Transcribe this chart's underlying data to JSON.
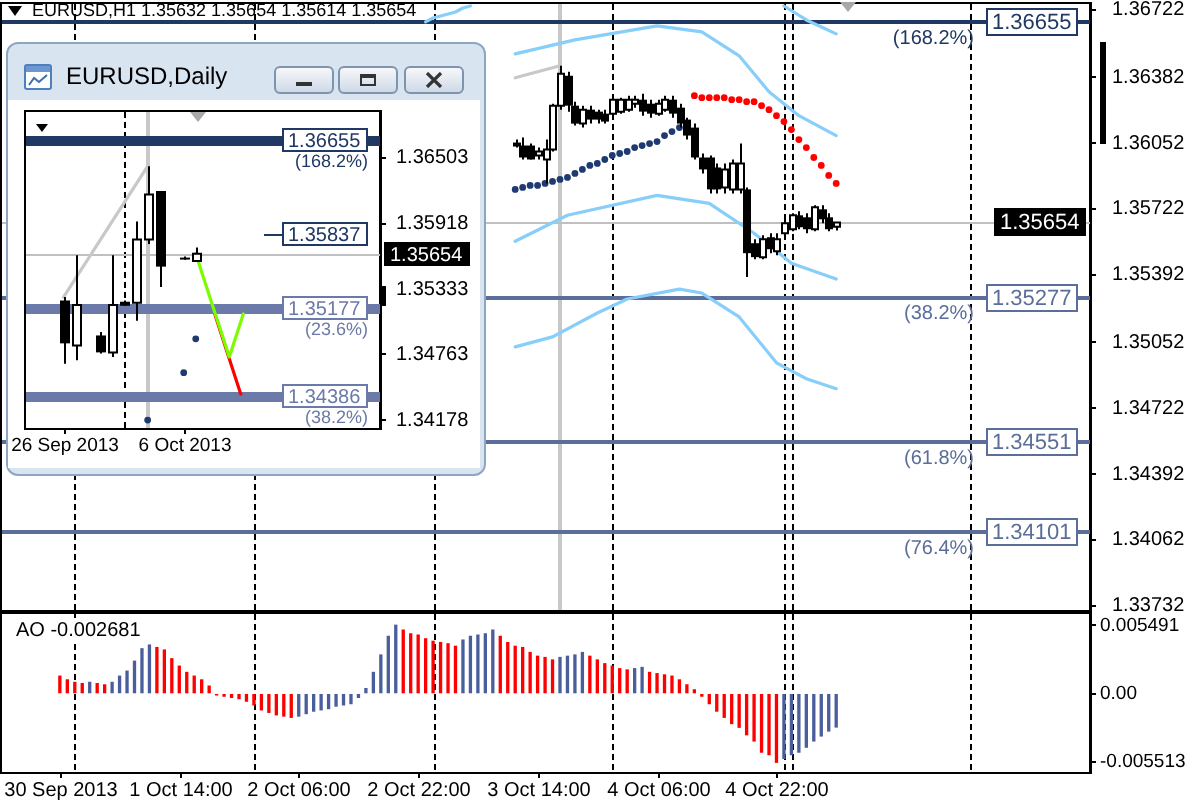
{
  "chart_data": [
    {
      "type": "candlestick",
      "title": "EURUSD,H1 1.35632 1.35654 1.35614 1.35654",
      "x": [
        "2013-10-03T11:00",
        "2013-10-03T12:00",
        "2013-10-03T13:00",
        "2013-10-03T14:00",
        "2013-10-03T15:00",
        "2013-10-03T16:00",
        "2013-10-03T17:00",
        "2013-10-03T18:00",
        "2013-10-03T19:00",
        "2013-10-03T20:00",
        "2013-10-03T21:00",
        "2013-10-03T22:00",
        "2013-10-03T23:00",
        "2013-10-04T00:00",
        "2013-10-04T01:00",
        "2013-10-04T02:00",
        "2013-10-04T03:00",
        "2013-10-04T04:00",
        "2013-10-04T05:00",
        "2013-10-04T06:00",
        "2013-10-04T07:00",
        "2013-10-04T08:00",
        "2013-10-04T09:00",
        "2013-10-04T10:00",
        "2013-10-04T11:00",
        "2013-10-04T12:00",
        "2013-10-04T13:00",
        "2013-10-04T14:00",
        "2013-10-04T15:00",
        "2013-10-04T16:00",
        "2013-10-04T17:00",
        "2013-10-04T18:00",
        "2013-10-04T19:00",
        "2013-10-04T20:00",
        "2013-10-04T21:00",
        "2013-10-04T22:00",
        "2013-10-04T23:00",
        "2013-10-05T00:00",
        "2013-10-05T01:00",
        "2013-10-05T02:00",
        "2013-10-05T03:00",
        "2013-10-05T04:00",
        "2013-10-05T05:00",
        "2013-10-05T06:00"
      ],
      "ohlc": [
        [
          1.3604,
          1.3607,
          1.3603,
          1.3605
        ],
        [
          1.3604,
          1.3608,
          1.3597,
          1.3598
        ],
        [
          1.3604,
          1.3605,
          1.3597,
          1.3597
        ],
        [
          1.3599,
          1.3603,
          1.3597,
          1.3601
        ],
        [
          1.3597,
          1.3607,
          1.3585,
          1.3602
        ],
        [
          1.3602,
          1.3625,
          1.3601,
          1.3624
        ],
        [
          1.3624,
          1.3644,
          1.3622,
          1.364
        ],
        [
          1.3639,
          1.3641,
          1.3621,
          1.3624
        ],
        [
          1.3624,
          1.3626,
          1.3614,
          1.3615
        ],
        [
          1.3615,
          1.3624,
          1.3613,
          1.3622
        ],
        [
          1.3622,
          1.3624,
          1.3615,
          1.3617
        ],
        [
          1.3621,
          1.3622,
          1.3615,
          1.3617
        ],
        [
          1.362,
          1.3622,
          1.3615,
          1.3616
        ],
        [
          1.362,
          1.3628,
          1.3619,
          1.3627
        ],
        [
          1.3621,
          1.3628,
          1.362,
          1.3627
        ],
        [
          1.3622,
          1.3629,
          1.3621,
          1.3627
        ],
        [
          1.3625,
          1.3629,
          1.3623,
          1.3627
        ],
        [
          1.3627,
          1.363,
          1.3619,
          1.3621
        ],
        [
          1.3625,
          1.3627,
          1.3618,
          1.362
        ],
        [
          1.362,
          1.3627,
          1.3619,
          1.3625
        ],
        [
          1.3622,
          1.3629,
          1.3621,
          1.3627
        ],
        [
          1.3627,
          1.3629,
          1.3618,
          1.362
        ],
        [
          1.3623,
          1.3625,
          1.3613,
          1.3615
        ],
        [
          1.3617,
          1.3618,
          1.3607,
          1.3609
        ],
        [
          1.3613,
          1.3615,
          1.3597,
          1.3598
        ],
        [
          1.3598,
          1.36,
          1.359,
          1.3592
        ],
        [
          1.3598,
          1.3599,
          1.358,
          1.3582
        ],
        [
          1.3593,
          1.3595,
          1.358,
          1.3582
        ],
        [
          1.3583,
          1.3595,
          1.358,
          1.3592
        ],
        [
          1.3582,
          1.3597,
          1.358,
          1.3595
        ],
        [
          1.3582,
          1.3605,
          1.358,
          1.3595
        ],
        [
          1.3582,
          1.3583,
          1.3538,
          1.355
        ],
        [
          1.3555,
          1.3557,
          1.3547,
          1.3548
        ],
        [
          1.3548,
          1.3559,
          1.3547,
          1.3557
        ],
        [
          1.3558,
          1.356,
          1.355,
          1.3552
        ],
        [
          1.3551,
          1.356,
          1.3549,
          1.3557
        ],
        [
          1.356,
          1.3568,
          1.3558,
          1.3565
        ],
        [
          1.3562,
          1.357,
          1.3561,
          1.3569
        ],
        [
          1.3569,
          1.3571,
          1.3562,
          1.3563
        ],
        [
          1.3568,
          1.357,
          1.356,
          1.3562
        ],
        [
          1.3562,
          1.3574,
          1.3561,
          1.3573
        ],
        [
          1.3572,
          1.3574,
          1.3565,
          1.3567
        ],
        [
          1.3568,
          1.357,
          1.3561,
          1.3562
        ],
        [
          1.35632,
          1.35654,
          1.35614,
          1.35654
        ]
      ],
      "series": [
        {
          "type": "line",
          "color": "#87cefa",
          "x": [
            "2013-10-02T23:00",
            "2013-10-03T00:00",
            "2013-10-03T01:00",
            "2013-10-03T02:00",
            "2013-10-03T03:00",
            "2013-10-03T04:00",
            "2013-10-03T05:00",
            "2013-10-04T12:00",
            "2013-10-04T23:00",
            "2013-10-05T02:00",
            "2013-10-05T06:00"
          ],
          "values": [
            1.3666,
            1.3668,
            1.3669,
            1.367,
            1.3671,
            1.3673,
            1.3674,
            null,
            1.3674,
            1.3667,
            1.366
          ]
        },
        {
          "type": "line",
          "color": "#87cefa",
          "x": [
            "2013-10-03T11:00",
            "2013-10-03T19:00",
            "2013-10-04T06:00",
            "2013-10-04T12:00",
            "2013-10-04T17:00",
            "2013-10-04T21:00",
            "2013-10-05T01:00",
            "2013-10-05T06:00"
          ],
          "values": [
            1.365,
            1.3657,
            1.3664,
            1.3661,
            1.3649,
            1.3631,
            1.3619,
            1.3609
          ]
        },
        {
          "type": "line",
          "color": "#87cefa",
          "x": [
            "2013-10-03T11:00",
            "2013-10-03T18:00",
            "2013-10-04T06:00",
            "2013-10-04T13:00",
            "2013-10-04T19:00",
            "2013-10-05T00:00",
            "2013-10-05T06:00"
          ],
          "values": [
            1.3556,
            1.3569,
            1.3579,
            1.3575,
            1.356,
            1.3545,
            1.3537
          ]
        },
        {
          "type": "line",
          "color": "#87cefa",
          "x": [
            "2013-10-03T11:00",
            "2013-10-03T16:00",
            "2013-10-03T22:00",
            "2013-10-04T02:00",
            "2013-10-04T09:00",
            "2013-10-04T12:00",
            "2013-10-04T17:00",
            "2013-10-04T22:00",
            "2013-10-05T02:00",
            "2013-10-05T06:00"
          ],
          "values": [
            1.3503,
            1.3508,
            1.352,
            1.3527,
            1.3532,
            1.353,
            1.3518,
            1.3495,
            1.3487,
            1.3482
          ]
        },
        {
          "type": "line",
          "color": "#c8c8c8",
          "x": [
            "2013-10-03T11:00",
            "2013-10-03T17:00"
          ],
          "values": [
            1.3638,
            1.3644
          ]
        },
        {
          "type": "scatter",
          "color": "#1f3a70",
          "marker": "circle",
          "x": [
            "2013-10-03T11:00",
            "2013-10-03T12:00",
            "2013-10-03T13:00",
            "2013-10-03T14:00",
            "2013-10-03T15:00",
            "2013-10-03T16:00",
            "2013-10-03T17:00",
            "2013-10-03T18:00",
            "2013-10-03T19:00",
            "2013-10-03T20:00",
            "2013-10-03T21:00",
            "2013-10-03T22:00",
            "2013-10-03T23:00",
            "2013-10-04T00:00",
            "2013-10-04T01:00",
            "2013-10-04T02:00",
            "2013-10-04T03:00",
            "2013-10-04T04:00",
            "2013-10-04T05:00",
            "2013-10-04T06:00",
            "2013-10-04T07:00",
            "2013-10-04T08:00",
            "2013-10-04T09:00"
          ],
          "values": [
            1.3582,
            1.3583,
            1.3584,
            1.3584,
            1.3585,
            1.3586,
            1.3587,
            1.3588,
            1.359,
            1.3592,
            1.3594,
            1.3595,
            1.3597,
            1.3599,
            1.36,
            1.3601,
            1.3603,
            1.3604,
            1.3605,
            1.3606,
            1.3609,
            1.3611,
            1.3613
          ]
        },
        {
          "type": "scatter",
          "color": "#ff0000",
          "marker": "circle",
          "x": [
            "2013-10-04T11:00",
            "2013-10-04T12:00",
            "2013-10-04T13:00",
            "2013-10-04T14:00",
            "2013-10-04T15:00",
            "2013-10-04T16:00",
            "2013-10-04T17:00",
            "2013-10-04T18:00",
            "2013-10-04T19:00",
            "2013-10-04T20:00",
            "2013-10-04T21:00",
            "2013-10-04T22:00",
            "2013-10-04T23:00",
            "2013-10-05T00:00",
            "2013-10-05T01:00",
            "2013-10-05T02:00",
            "2013-10-05T03:00",
            "2013-10-05T04:00",
            "2013-10-05T05:00",
            "2013-10-05T06:00"
          ],
          "values": [
            1.3629,
            1.3628,
            1.3628,
            1.3628,
            1.3628,
            1.3627,
            1.3627,
            1.3626,
            1.3626,
            1.3624,
            1.3622,
            1.3619,
            1.3616,
            1.3612,
            1.3607,
            1.3603,
            1.3598,
            1.3594,
            1.3589,
            1.3585
          ]
        }
      ],
      "xlim": [
        "2013-09-30T14:15",
        "2013-10-06T16:00"
      ],
      "ylim": [
        1.3371,
        1.3675
      ],
      "yticks": [
        1.33732,
        1.34062,
        1.34392,
        1.34722,
        1.35052,
        1.35392,
        1.35722,
        1.36052,
        1.36382,
        1.36722
      ],
      "tick_labels": "y",
      "ref_lines": [
        {
          "axis": "y",
          "value": 1.36655,
          "label": "1.36655",
          "color": "#1f3864"
        },
        {
          "axis": "y",
          "value": 1.35277,
          "label": "1.35277",
          "color": "#5b6e9a"
        },
        {
          "axis": "y",
          "value": 1.34551,
          "label": "1.34551",
          "color": "#5b6e9a"
        },
        {
          "axis": "y",
          "value": 1.34101,
          "label": "1.34101",
          "color": "#5b6e9a"
        },
        {
          "axis": "y",
          "value": 1.35654,
          "label": "1.35654",
          "color": "#c0c0c0"
        },
        {
          "axis": "x",
          "value": "2013-10-01T00:00",
          "color": "#000000",
          "line_style": "dashed"
        },
        {
          "axis": "x",
          "value": "2013-10-02T00:00",
          "color": "#000000",
          "line_style": "dashed"
        },
        {
          "axis": "x",
          "value": "2013-10-03T00:00",
          "color": "#000000",
          "line_style": "dashed"
        },
        {
          "axis": "x",
          "value": "2013-10-04T00:00",
          "color": "#000000",
          "line_style": "dashed"
        },
        {
          "axis": "x",
          "value": "2013-10-04T23:00",
          "color": "#000000",
          "line_style": "dashed"
        },
        {
          "axis": "x",
          "value": "2013-10-05T00:00",
          "color": "#000000",
          "line_style": "dashed"
        },
        {
          "axis": "x",
          "value": "2013-10-06T00:00",
          "color": "#000000",
          "line_style": "dashed"
        },
        {
          "axis": "x",
          "value": "2013-10-03T17:00",
          "color": "#c8c8c8"
        }
      ],
      "annotations": [
        {
          "text": "(168.2%)",
          "y": 1.36655
        },
        {
          "text": "(38.2%)",
          "y": 1.35277
        },
        {
          "text": "(61.8%)",
          "y": 1.34551
        },
        {
          "text": "(76.4%)",
          "y": 1.34101
        }
      ]
    },
    {
      "type": "candlestick",
      "title": "EURUSD,Daily",
      "x": [
        "2013-09-26",
        "2013-09-27",
        "2013-09-29",
        "2013-09-30",
        "2013-10-01",
        "2013-10-02",
        "2013-10-03",
        "2013-10-04",
        "2013-10-06",
        "2013-10-07"
      ],
      "ohlc": [
        [
          1.3524,
          1.3527,
          1.3468,
          1.3486
        ],
        [
          1.3484,
          1.3564,
          1.3471,
          1.352
        ],
        [
          1.3493,
          1.3496,
          1.3477,
          1.3478
        ],
        [
          1.3478,
          1.3564,
          1.3474,
          1.352
        ],
        [
          1.3521,
          1.3524,
          1.3519,
          1.3522
        ],
        [
          1.3522,
          1.3594,
          1.3506,
          1.3578
        ],
        [
          1.3578,
          1.3643,
          1.3574,
          1.3618
        ],
        [
          1.3621,
          1.3621,
          1.3536,
          1.3554
        ],
        [
          1.3562,
          1.3563,
          1.356,
          1.3561
        ],
        [
          1.3559,
          1.3571,
          1.3558,
          1.35654
        ]
      ],
      "series": [
        {
          "type": "line",
          "color": "#c8c8c8",
          "x": [
            "2013-09-26",
            "2013-10-03"
          ],
          "values": [
            1.3527,
            1.3643
          ]
        },
        {
          "type": "scatter",
          "color": "#1f3a70",
          "marker": "circle",
          "x": [
            "2013-10-03",
            "2013-10-06",
            "2013-10-07"
          ],
          "values": [
            1.3418,
            1.346,
            1.349
          ]
        },
        {
          "type": "line",
          "color": "#7cfc00",
          "x": [
            "2013-10-07",
            "2013-10-09T19:00",
            "2013-10-10T23:00"
          ],
          "values": [
            1.35654,
            1.3474,
            1.3512
          ]
        },
        {
          "type": "line",
          "color": "#ff0000",
          "x": [
            "2013-10-08T14:00",
            "2013-10-10T18:00"
          ],
          "values": [
            1.3512,
            1.3441
          ]
        }
      ],
      "xlim": [
        "2013-09-22T21:00",
        "2013-10-22T08:00"
      ],
      "xticks": [
        {
          "value": "2013-09-26",
          "label": "26 Sep 2013"
        },
        {
          "value": "2013-10-06",
          "label": "6 Oct 2013"
        }
      ],
      "ylim": [
        1.3411,
        1.3691
      ],
      "yticks": [
        1.34178,
        1.34763,
        1.35333,
        1.35918,
        1.36503
      ],
      "ref_lines": [
        {
          "axis": "y",
          "value": 1.36655,
          "label": "1.36655",
          "color": "#1f3864"
        },
        {
          "axis": "y",
          "value": 1.35177,
          "label": "1.35177",
          "color": "#6b7aa8"
        },
        {
          "axis": "y",
          "value": 1.34386,
          "label": "1.34386",
          "color": "#6b7aa8"
        },
        {
          "axis": "y",
          "value": 1.35654,
          "label": "1.35654",
          "color": "#c0c0c0"
        },
        {
          "axis": "x",
          "value": "2013-10-01",
          "color": "#000000",
          "line_style": "dashed"
        },
        {
          "axis": "x",
          "value": "2013-10-03",
          "color": "#c8c8c8"
        }
      ],
      "annotations": [
        {
          "text": "(168.2%)",
          "y": 1.36655
        },
        {
          "text": "(23.6%)",
          "y": 1.35177
        },
        {
          "text": "(38.2%)",
          "y": 1.34386
        },
        "1.35837"
      ]
    },
    {
      "type": "bar",
      "title": "AO -0.002681",
      "x": [
        "2013-09-30T22:00",
        "2013-09-30T23:00",
        "2013-10-01T00:00",
        "2013-10-01T01:00",
        "2013-10-01T02:00",
        "2013-10-01T03:00",
        "2013-10-01T04:00",
        "2013-10-01T05:00",
        "2013-10-01T06:00",
        "2013-10-01T07:00",
        "2013-10-01T08:00",
        "2013-10-01T09:00",
        "2013-10-01T10:00",
        "2013-10-01T11:00",
        "2013-10-01T12:00",
        "2013-10-01T13:00",
        "2013-10-01T14:00",
        "2013-10-01T15:00",
        "2013-10-01T16:00",
        "2013-10-01T17:00",
        "2013-10-01T18:00",
        "2013-10-01T19:00",
        "2013-10-01T20:00",
        "2013-10-01T21:00",
        "2013-10-01T22:00",
        "2013-10-01T23:00",
        "2013-10-02T00:00",
        "2013-10-02T01:00",
        "2013-10-02T02:00",
        "2013-10-02T03:00",
        "2013-10-02T04:00",
        "2013-10-02T05:00",
        "2013-10-02T06:00",
        "2013-10-02T07:00",
        "2013-10-02T08:00",
        "2013-10-02T09:00",
        "2013-10-02T10:00",
        "2013-10-02T11:00",
        "2013-10-02T12:00",
        "2013-10-02T13:00",
        "2013-10-02T14:00",
        "2013-10-02T15:00",
        "2013-10-02T16:00",
        "2013-10-02T17:00",
        "2013-10-02T18:00",
        "2013-10-02T19:00",
        "2013-10-02T20:00",
        "2013-10-02T21:00",
        "2013-10-02T22:00",
        "2013-10-02T23:00",
        "2013-10-03T00:00",
        "2013-10-03T01:00",
        "2013-10-03T02:00",
        "2013-10-03T03:00",
        "2013-10-03T04:00",
        "2013-10-03T05:00",
        "2013-10-03T06:00",
        "2013-10-03T07:00",
        "2013-10-03T08:00",
        "2013-10-03T09:00",
        "2013-10-03T10:00",
        "2013-10-03T11:00",
        "2013-10-03T12:00",
        "2013-10-03T13:00",
        "2013-10-03T14:00",
        "2013-10-03T15:00",
        "2013-10-03T16:00",
        "2013-10-03T17:00",
        "2013-10-03T18:00",
        "2013-10-03T19:00",
        "2013-10-03T20:00",
        "2013-10-03T21:00",
        "2013-10-03T22:00",
        "2013-10-03T23:00",
        "2013-10-04T00:00",
        "2013-10-04T01:00",
        "2013-10-04T02:00",
        "2013-10-04T03:00",
        "2013-10-04T04:00",
        "2013-10-04T05:00",
        "2013-10-04T06:00",
        "2013-10-04T07:00",
        "2013-10-04T08:00",
        "2013-10-04T09:00",
        "2013-10-04T10:00",
        "2013-10-04T11:00",
        "2013-10-04T12:00",
        "2013-10-04T13:00",
        "2013-10-04T14:00",
        "2013-10-04T15:00",
        "2013-10-04T16:00",
        "2013-10-04T17:00",
        "2013-10-04T18:00",
        "2013-10-04T19:00",
        "2013-10-04T20:00",
        "2013-10-04T21:00",
        "2013-10-04T22:00",
        "2013-10-04T23:00",
        "2013-10-05T00:00",
        "2013-10-05T01:00",
        "2013-10-05T02:00",
        "2013-10-05T03:00",
        "2013-10-05T04:00",
        "2013-10-05T05:00",
        "2013-10-05T06:00"
      ],
      "values": [
        0.0014,
        0.0011,
        0.0009,
        0.0008,
        0.0009,
        0.0008,
        0.0007,
        0.0009,
        0.0014,
        0.0018,
        0.0026,
        0.0036,
        0.0039,
        0.0037,
        0.0035,
        0.0028,
        0.0022,
        0.0017,
        0.0014,
        0.0011,
        0.0006,
        -0.0001,
        -0.0002,
        -0.0003,
        -0.0004,
        -0.0006,
        -0.0009,
        -0.0013,
        -0.0015,
        -0.0017,
        -0.0018,
        -0.0019,
        -0.0018,
        -0.0016,
        -0.0014,
        -0.0013,
        -0.0012,
        -0.001,
        -0.0009,
        -0.0008,
        -0.0003,
        0.0004,
        0.0017,
        0.0031,
        0.0046,
        0.005491,
        0.0051,
        0.0048,
        0.0047,
        0.0044,
        0.0042,
        0.0041,
        0.004,
        0.0038,
        0.0043,
        0.0046,
        0.0047,
        0.0048,
        0.0051,
        0.0046,
        0.0041,
        0.0038,
        0.0037,
        0.0033,
        0.003,
        0.0029,
        0.0027,
        0.0029,
        0.003,
        0.0031,
        0.0033,
        0.003,
        0.0027,
        0.0024,
        0.0022,
        0.002,
        0.0019,
        0.002,
        0.0021,
        0.0017,
        0.0016,
        0.0015,
        0.0014,
        0.0011,
        0.0007,
        0.0003,
        -0.0002,
        -0.0008,
        -0.0014,
        -0.0019,
        -0.0024,
        -0.0027,
        -0.0033,
        -0.0038,
        -0.0047,
        -0.0049,
        -0.005513,
        -0.0052,
        -0.0049,
        -0.0047,
        -0.0043,
        -0.0038,
        -0.0034,
        -0.003,
        -0.002681
      ],
      "colors": [
        "#ff0000",
        "#ff0000",
        "#ff0000",
        "#ff0000",
        "#4b5e9c",
        "#ff0000",
        "#ff0000",
        "#4b5e9c",
        "#4b5e9c",
        "#4b5e9c",
        "#4b5e9c",
        "#4b5e9c",
        "#4b5e9c",
        "#ff0000",
        "#ff0000",
        "#ff0000",
        "#ff0000",
        "#ff0000",
        "#ff0000",
        "#ff0000",
        "#ff0000",
        "#ff0000",
        "#ff0000",
        "#ff0000",
        "#ff0000",
        "#ff0000",
        "#ff0000",
        "#ff0000",
        "#ff0000",
        "#ff0000",
        "#ff0000",
        "#ff0000",
        "#4b5e9c",
        "#4b5e9c",
        "#4b5e9c",
        "#4b5e9c",
        "#4b5e9c",
        "#4b5e9c",
        "#4b5e9c",
        "#4b5e9c",
        "#4b5e9c",
        "#4b5e9c",
        "#4b5e9c",
        "#4b5e9c",
        "#4b5e9c",
        "#4b5e9c",
        "#ff0000",
        "#ff0000",
        "#ff0000",
        "#ff0000",
        "#ff0000",
        "#ff0000",
        "#ff0000",
        "#ff0000",
        "#4b5e9c",
        "#4b5e9c",
        "#4b5e9c",
        "#4b5e9c",
        "#4b5e9c",
        "#ff0000",
        "#ff0000",
        "#ff0000",
        "#ff0000",
        "#ff0000",
        "#ff0000",
        "#ff0000",
        "#ff0000",
        "#4b5e9c",
        "#4b5e9c",
        "#4b5e9c",
        "#4b5e9c",
        "#ff0000",
        "#ff0000",
        "#ff0000",
        "#ff0000",
        "#ff0000",
        "#ff0000",
        "#4b5e9c",
        "#4b5e9c",
        "#ff0000",
        "#ff0000",
        "#ff0000",
        "#ff0000",
        "#ff0000",
        "#ff0000",
        "#ff0000",
        "#ff0000",
        "#ff0000",
        "#ff0000",
        "#ff0000",
        "#ff0000",
        "#ff0000",
        "#ff0000",
        "#ff0000",
        "#ff0000",
        "#ff0000",
        "#ff0000",
        "#4b5e9c",
        "#4b5e9c",
        "#4b5e9c",
        "#4b5e9c",
        "#4b5e9c",
        "#4b5e9c",
        "#4b5e9c",
        "#4b5e9c"
      ],
      "xlim": [
        "2013-09-30T14:15",
        "2013-10-06T16:00"
      ],
      "xticks": [
        {
          "value": "2013-09-30T22:00",
          "label": "30 Sep 2013"
        },
        {
          "value": "2013-10-01T14:00",
          "label": "1 Oct 14:00"
        },
        {
          "value": "2013-10-02T06:00",
          "label": "2 Oct 06:00"
        },
        {
          "value": "2013-10-02T22:00",
          "label": "2 Oct 22:00"
        },
        {
          "value": "2013-10-03T14:00",
          "label": "3 Oct 14:00"
        },
        {
          "value": "2013-10-04T06:00",
          "label": "4 Oct 06:00"
        },
        {
          "value": "2013-10-04T22:00",
          "label": "4 Oct 22:00"
        }
      ],
      "ylim": [
        -0.0063,
        0.0064
      ],
      "yticks": [
        -0.005513,
        {
          "value": 0,
          "label": "0.00"
        },
        0.005491
      ],
      "ref_lines": [
        {
          "axis": "x",
          "value": "2013-10-01T00:00",
          "color": "#000000",
          "line_style": "dashed"
        },
        {
          "axis": "x",
          "value": "2013-10-02T00:00",
          "color": "#000000",
          "line_style": "dashed"
        },
        {
          "axis": "x",
          "value": "2013-10-03T00:00",
          "color": "#000000",
          "line_style": "dashed"
        },
        {
          "axis": "x",
          "value": "2013-10-04T00:00",
          "color": "#000000",
          "line_style": "dashed"
        },
        {
          "axis": "x",
          "value": "2013-10-04T23:00",
          "color": "#000000",
          "line_style": "dashed"
        },
        {
          "axis": "x",
          "value": "2013-10-05T00:00",
          "color": "#000000",
          "line_style": "dashed"
        },
        {
          "axis": "x",
          "value": "2013-10-06T00:00",
          "color": "#000000",
          "line_style": "dashed"
        }
      ]
    }
  ]
}
